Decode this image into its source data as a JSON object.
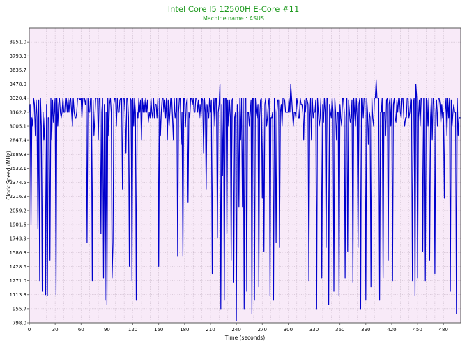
{
  "chart_data": {
    "type": "line",
    "title": "Intel Core I5 12500H E-Core #11",
    "subtitle": "Machine name : ASUS",
    "xlabel": "Time (seconds)",
    "ylabel": "Clock Speed (MHz)",
    "xlim": [
      0,
      500
    ],
    "ylim": [
      798.0,
      4109.0
    ],
    "x_ticks": [
      0,
      30,
      60,
      90,
      120,
      150,
      180,
      210,
      240,
      270,
      300,
      330,
      360,
      390,
      420,
      450,
      480
    ],
    "y_ticks": [
      798.0,
      955.7,
      1113.3,
      1271.0,
      1428.6,
      1586.3,
      1743.9,
      1901.6,
      2059.2,
      2216.9,
      2374.5,
      2532.1,
      2689.8,
      2847.4,
      3005.1,
      3162.7,
      3320.4,
      3478.0,
      3635.7,
      3793.3,
      3951.0
    ],
    "grid": true,
    "background": "#f8eaf8",
    "grid_color": "#c9b9c9",
    "line_color": "#0000cc",
    "series": [
      {
        "sample_interval_s": 1,
        "baseline_mhz": 3320.4,
        "dips": [
          {
            "t": 2,
            "y": 1901.6
          },
          {
            "t": 4,
            "y": 3005.1
          },
          {
            "t": 7,
            "y": 2900
          },
          {
            "t": 10,
            "y": 1850
          },
          {
            "t": 12,
            "y": 1271.0
          },
          {
            "t": 14,
            "y": 3005.1
          },
          {
            "t": 15,
            "y": 1150
          },
          {
            "t": 17,
            "y": 2850
          },
          {
            "t": 19,
            "y": 1113.3
          },
          {
            "t": 21,
            "y": 1100
          },
          {
            "t": 23,
            "y": 3100
          },
          {
            "t": 24,
            "y": 1500
          },
          {
            "t": 26,
            "y": 2850
          },
          {
            "t": 28,
            "y": 3050
          },
          {
            "t": 31,
            "y": 1113.3
          },
          {
            "t": 33,
            "y": 3005.1
          },
          {
            "t": 36,
            "y": 3162.7
          },
          {
            "t": 44,
            "y": 3162.7
          },
          {
            "t": 50,
            "y": 3005.1
          },
          {
            "t": 55,
            "y": 3162.7
          },
          {
            "t": 61,
            "y": 3100
          },
          {
            "t": 67,
            "y": 1700
          },
          {
            "t": 73,
            "y": 1271.0
          },
          {
            "t": 75,
            "y": 2900
          },
          {
            "t": 80,
            "y": 2850
          },
          {
            "t": 83,
            "y": 1800
          },
          {
            "t": 86,
            "y": 1300
          },
          {
            "t": 88,
            "y": 1050
          },
          {
            "t": 90,
            "y": 1000
          },
          {
            "t": 92,
            "y": 2900
          },
          {
            "t": 96,
            "y": 1300
          },
          {
            "t": 97,
            "y": 1700
          },
          {
            "t": 101,
            "y": 3005.1
          },
          {
            "t": 103,
            "y": 3162.7
          },
          {
            "t": 108,
            "y": 2300
          },
          {
            "t": 112,
            "y": 2700
          },
          {
            "t": 116,
            "y": 1430
          },
          {
            "t": 119,
            "y": 1271.0
          },
          {
            "t": 121,
            "y": 3005.1
          },
          {
            "t": 124,
            "y": 1050
          },
          {
            "t": 126,
            "y": 3100
          },
          {
            "t": 130,
            "y": 2850
          },
          {
            "t": 134,
            "y": 3162.7
          },
          {
            "t": 138,
            "y": 3050
          },
          {
            "t": 142,
            "y": 3162.7
          },
          {
            "t": 145,
            "y": 3100
          },
          {
            "t": 150,
            "y": 1428.6
          },
          {
            "t": 152,
            "y": 2900
          },
          {
            "t": 156,
            "y": 3162.7
          },
          {
            "t": 160,
            "y": 2850
          },
          {
            "t": 162,
            "y": 3005.1
          },
          {
            "t": 167,
            "y": 2850
          },
          {
            "t": 172,
            "y": 1550
          },
          {
            "t": 176,
            "y": 2800
          },
          {
            "t": 178,
            "y": 1550
          },
          {
            "t": 181,
            "y": 3000
          },
          {
            "t": 184,
            "y": 2150
          },
          {
            "t": 186,
            "y": 3100
          },
          {
            "t": 192,
            "y": 3162.7
          },
          {
            "t": 197,
            "y": 3100
          },
          {
            "t": 202,
            "y": 2700
          },
          {
            "t": 205,
            "y": 2300
          },
          {
            "t": 207,
            "y": 3162.7
          },
          {
            "t": 212,
            "y": 1350
          },
          {
            "t": 215,
            "y": 3005.1
          },
          {
            "t": 218,
            "y": 1750
          },
          {
            "t": 222,
            "y": 955.7
          },
          {
            "t": 224,
            "y": 2450
          },
          {
            "t": 226,
            "y": 1050
          },
          {
            "t": 229,
            "y": 1800
          },
          {
            "t": 231,
            "y": 3005.1
          },
          {
            "t": 234,
            "y": 1500
          },
          {
            "t": 237,
            "y": 1250
          },
          {
            "t": 240,
            "y": 820
          },
          {
            "t": 243,
            "y": 2100
          },
          {
            "t": 245,
            "y": 2850
          },
          {
            "t": 247,
            "y": 2100
          },
          {
            "t": 249,
            "y": 955.7
          },
          {
            "t": 252,
            "y": 1150
          },
          {
            "t": 255,
            "y": 3005.1
          },
          {
            "t": 258,
            "y": 900
          },
          {
            "t": 261,
            "y": 1050
          },
          {
            "t": 264,
            "y": 3100
          },
          {
            "t": 266,
            "y": 1200
          },
          {
            "t": 270,
            "y": 2200
          },
          {
            "t": 272,
            "y": 1600
          },
          {
            "t": 275,
            "y": 3005.1
          },
          {
            "t": 279,
            "y": 1100
          },
          {
            "t": 283,
            "y": 1050
          },
          {
            "t": 286,
            "y": 1700
          },
          {
            "t": 290,
            "y": 1650
          },
          {
            "t": 293,
            "y": 3005.1
          },
          {
            "t": 300,
            "y": 3162.7
          },
          {
            "t": 306,
            "y": 3005.1
          },
          {
            "t": 312,
            "y": 3100
          },
          {
            "t": 318,
            "y": 2850
          },
          {
            "t": 324,
            "y": 1271.0
          },
          {
            "t": 327,
            "y": 2850
          },
          {
            "t": 333,
            "y": 955.7
          },
          {
            "t": 336,
            "y": 3005.1
          },
          {
            "t": 339,
            "y": 1300
          },
          {
            "t": 341,
            "y": 3050
          },
          {
            "t": 344,
            "y": 1650
          },
          {
            "t": 347,
            "y": 1000
          },
          {
            "t": 350,
            "y": 3100
          },
          {
            "t": 353,
            "y": 1150
          },
          {
            "t": 356,
            "y": 2850
          },
          {
            "t": 359,
            "y": 1100
          },
          {
            "t": 362,
            "y": 3005.1
          },
          {
            "t": 366,
            "y": 1300
          },
          {
            "t": 369,
            "y": 1600
          },
          {
            "t": 372,
            "y": 3050
          },
          {
            "t": 375,
            "y": 1250
          },
          {
            "t": 378,
            "y": 3005.1
          },
          {
            "t": 381,
            "y": 1650
          },
          {
            "t": 384,
            "y": 955.7
          },
          {
            "t": 387,
            "y": 3100
          },
          {
            "t": 390,
            "y": 1050
          },
          {
            "t": 393,
            "y": 2800
          },
          {
            "t": 396,
            "y": 1200
          },
          {
            "t": 399,
            "y": 3005.1
          },
          {
            "t": 402,
            "y": 1450
          },
          {
            "t": 406,
            "y": 1050
          },
          {
            "t": 410,
            "y": 1300
          },
          {
            "t": 413,
            "y": 2900
          },
          {
            "t": 416,
            "y": 1500
          },
          {
            "t": 419,
            "y": 3005.1
          },
          {
            "t": 421,
            "y": 1271.0
          },
          {
            "t": 425,
            "y": 3050
          },
          {
            "t": 430,
            "y": 3162.7
          },
          {
            "t": 435,
            "y": 3005.1
          },
          {
            "t": 440,
            "y": 3100
          },
          {
            "t": 444,
            "y": 1271.0
          },
          {
            "t": 447,
            "y": 1100
          },
          {
            "t": 450,
            "y": 1300
          },
          {
            "t": 453,
            "y": 3005.1
          },
          {
            "t": 456,
            "y": 1600
          },
          {
            "t": 459,
            "y": 1271.0
          },
          {
            "t": 462,
            "y": 3005.1
          },
          {
            "t": 464,
            "y": 1500
          },
          {
            "t": 467,
            "y": 2850
          },
          {
            "t": 470,
            "y": 1350
          },
          {
            "t": 473,
            "y": 3005.1
          },
          {
            "t": 477,
            "y": 3050
          },
          {
            "t": 481,
            "y": 2200
          },
          {
            "t": 484,
            "y": 2900
          },
          {
            "t": 488,
            "y": 1150
          },
          {
            "t": 490,
            "y": 3005.1
          },
          {
            "t": 493,
            "y": 3162.7
          },
          {
            "t": 495,
            "y": 900
          },
          {
            "t": 497,
            "y": 2900
          },
          {
            "t": 499,
            "y": 3100
          }
        ],
        "peaks": [
          {
            "t": 221,
            "y": 3478.0
          },
          {
            "t": 402,
            "y": 3520.0
          },
          {
            "t": 448,
            "y": 3478.0
          },
          {
            "t": 303,
            "y": 3478.0
          }
        ]
      }
    ]
  }
}
